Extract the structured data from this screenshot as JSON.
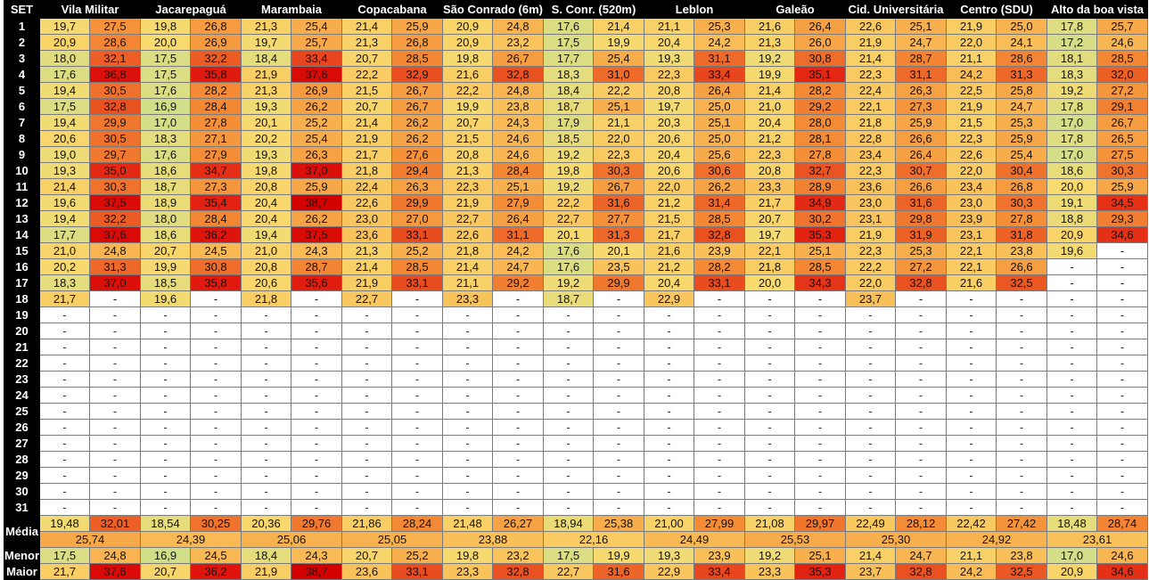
{
  "corner_label": "SET",
  "stations": [
    "Vila Militar",
    "Jacarepaguá",
    "Marambaia",
    "Copacabana",
    "São Conrado (6m)",
    "S. Conr. (520m)",
    "Leblon",
    "Galeão",
    "Cid. Universitária",
    "Centro (SDU)",
    "Alto da boa vista"
  ],
  "day_labels": [
    "1",
    "2",
    "3",
    "4",
    "5",
    "6",
    "7",
    "8",
    "9",
    "10",
    "11",
    "12",
    "13",
    "14",
    "15",
    "16",
    "17",
    "18",
    "19",
    "20",
    "21",
    "22",
    "23",
    "24",
    "25",
    "26",
    "27",
    "28",
    "29",
    "30",
    "31"
  ],
  "empty_symbol": "-",
  "rows": [
    [
      "19,7",
      "27,5",
      "19,8",
      "26,8",
      "21,3",
      "25,4",
      "21,4",
      "25,9",
      "20,9",
      "24,8",
      "17,6",
      "21,4",
      "21,1",
      "25,3",
      "21,6",
      "26,4",
      "22,6",
      "25,1",
      "21,9",
      "25,0",
      "17,8",
      "25,7"
    ],
    [
      "20,9",
      "28,6",
      "20,0",
      "26,9",
      "19,7",
      "25,7",
      "21,3",
      "26,8",
      "20,9",
      "23,2",
      "17,5",
      "19,9",
      "20,4",
      "24,2",
      "21,3",
      "26,0",
      "21,9",
      "24,7",
      "22,0",
      "24,1",
      "17,2",
      "24,6"
    ],
    [
      "18,0",
      "32,1",
      "17,5",
      "32,2",
      "18,4",
      "33,4",
      "20,7",
      "28,5",
      "19,8",
      "26,7",
      "17,7",
      "25,4",
      "19,3",
      "31,1",
      "19,2",
      "30,8",
      "21,4",
      "28,7",
      "21,1",
      "28,6",
      "18,1",
      "28,5"
    ],
    [
      "17,6",
      "36,8",
      "17,5",
      "35,8",
      "21,9",
      "37,6",
      "22,2",
      "32,9",
      "21,6",
      "32,8",
      "18,3",
      "31,0",
      "22,3",
      "33,4",
      "19,9",
      "35,1",
      "22,3",
      "31,1",
      "24,2",
      "31,3",
      "18,3",
      "32,0"
    ],
    [
      "19,4",
      "30,5",
      "17,6",
      "28,2",
      "21,3",
      "26,9",
      "21,5",
      "26,7",
      "22,2",
      "24,8",
      "18,4",
      "22,2",
      "20,8",
      "26,4",
      "21,4",
      "28,2",
      "22,4",
      "26,3",
      "22,5",
      "25,8",
      "19,2",
      "27,2"
    ],
    [
      "17,5",
      "32,8",
      "16,9",
      "28,4",
      "19,3",
      "26,2",
      "20,7",
      "26,7",
      "19,9",
      "23,8",
      "18,7",
      "25,1",
      "19,7",
      "25,0",
      "21,0",
      "29,2",
      "22,1",
      "27,3",
      "21,9",
      "24,7",
      "17,8",
      "29,1"
    ],
    [
      "19,4",
      "29,9",
      "17,0",
      "27,8",
      "20,1",
      "25,2",
      "21,4",
      "26,2",
      "20,7",
      "24,3",
      "17,9",
      "21,1",
      "20,3",
      "25,1",
      "20,4",
      "28,0",
      "21,8",
      "25,9",
      "21,5",
      "25,3",
      "17,0",
      "26,7"
    ],
    [
      "20,6",
      "30,5",
      "18,3",
      "27,1",
      "20,2",
      "25,4",
      "21,9",
      "26,2",
      "21,5",
      "24,6",
      "18,5",
      "22,0",
      "20,6",
      "25,0",
      "21,2",
      "28,1",
      "22,8",
      "26,6",
      "22,3",
      "25,9",
      "17,8",
      "26,5"
    ],
    [
      "19,0",
      "29,7",
      "17,6",
      "27,9",
      "19,3",
      "26,3",
      "21,7",
      "27,6",
      "20,8",
      "24,6",
      "19,2",
      "22,3",
      "20,4",
      "25,6",
      "22,3",
      "27,8",
      "23,4",
      "26,4",
      "22,6",
      "25,4",
      "17,0",
      "27,5"
    ],
    [
      "19,3",
      "35,0",
      "18,6",
      "34,7",
      "19,8",
      "37,0",
      "21,8",
      "29,4",
      "21,3",
      "28,4",
      "19,8",
      "30,3",
      "20,6",
      "30,6",
      "20,8",
      "32,7",
      "22,3",
      "30,7",
      "22,0",
      "30,4",
      "18,6",
      "30,3"
    ],
    [
      "21,4",
      "30,3",
      "18,7",
      "27,3",
      "20,8",
      "25,9",
      "22,4",
      "26,3",
      "22,3",
      "25,1",
      "19,2",
      "26,7",
      "22,0",
      "26,2",
      "23,3",
      "28,9",
      "23,6",
      "26,6",
      "23,4",
      "26,8",
      "20,0",
      "25,9"
    ],
    [
      "19,6",
      "37,5",
      "18,9",
      "35,4",
      "20,4",
      "38,7",
      "22,6",
      "29,9",
      "21,9",
      "27,9",
      "22,2",
      "31,6",
      "21,2",
      "31,4",
      "21,7",
      "34,9",
      "23,0",
      "31,6",
      "23,0",
      "30,3",
      "19,1",
      "34,5"
    ],
    [
      "19,4",
      "32,2",
      "18,0",
      "28,4",
      "20,4",
      "26,2",
      "23,0",
      "27,0",
      "22,7",
      "26,4",
      "22,7",
      "27,7",
      "21,5",
      "28,5",
      "20,7",
      "30,2",
      "23,1",
      "29,8",
      "23,9",
      "27,8",
      "18,8",
      "29,3"
    ],
    [
      "17,7",
      "37,6",
      "18,6",
      "36,2",
      "19,4",
      "37,5",
      "23,6",
      "33,1",
      "22,6",
      "31,1",
      "20,1",
      "31,3",
      "21,7",
      "32,8",
      "19,7",
      "35,3",
      "21,9",
      "31,9",
      "23,1",
      "31,8",
      "20,9",
      "34,6"
    ],
    [
      "21,0",
      "24,8",
      "20,7",
      "24,5",
      "21,0",
      "24,3",
      "21,3",
      "25,2",
      "21,8",
      "24,2",
      "17,6",
      "20,1",
      "21,6",
      "23,9",
      "22,1",
      "25,1",
      "22,3",
      "25,3",
      "22,1",
      "23,8",
      "19,6",
      "-"
    ],
    [
      "20,2",
      "31,3",
      "19,9",
      "30,8",
      "20,8",
      "28,7",
      "21,4",
      "28,5",
      "21,4",
      "24,7",
      "17,6",
      "23,5",
      "21,2",
      "28,2",
      "21,8",
      "28,5",
      "22,2",
      "27,2",
      "22,1",
      "26,6",
      "-",
      "-"
    ],
    [
      "18,3",
      "37,0",
      "18,5",
      "35,8",
      "20,6",
      "35,6",
      "21,9",
      "33,1",
      "21,1",
      "29,2",
      "19,2",
      "29,9",
      "20,4",
      "33,1",
      "20,0",
      "34,3",
      "22,0",
      "32,8",
      "21,6",
      "32,5",
      "-",
      "-"
    ],
    [
      "21,7",
      "-",
      "19,6",
      "-",
      "21,8",
      "-",
      "22,7",
      "-",
      "23,3",
      "-",
      "18,7",
      "-",
      "22,9",
      "-",
      "-",
      "-",
      "23,7",
      "-",
      "-",
      "-",
      "-",
      "-"
    ]
  ],
  "summary": {
    "media_label": "Média",
    "media_pairs": [
      "19,48",
      "32,01",
      "18,54",
      "30,25",
      "20,36",
      "29,76",
      "21,86",
      "28,24",
      "21,48",
      "26,27",
      "18,94",
      "25,38",
      "21,00",
      "27,99",
      "21,08",
      "29,97",
      "22,49",
      "28,12",
      "22,42",
      "27,42",
      "18,48",
      "28,74"
    ],
    "media_avg": [
      "25,74",
      "24,39",
      "25,06",
      "25,05",
      "23,88",
      "22,16",
      "24,49",
      "25,53",
      "25,30",
      "24,92",
      "23,61"
    ],
    "menor_label": "Menor",
    "menor": [
      "17,5",
      "24,8",
      "16,9",
      "24,5",
      "18,4",
      "24,3",
      "20,7",
      "25,2",
      "19,8",
      "23,2",
      "17,5",
      "19,9",
      "19,3",
      "23,9",
      "19,2",
      "25,1",
      "21,4",
      "24,7",
      "21,1",
      "23,8",
      "17,0",
      "24,6"
    ],
    "maior_label": "Maior",
    "maior": [
      "21,7",
      "37,6",
      "20,7",
      "36,2",
      "21,9",
      "38,7",
      "23,6",
      "33,1",
      "23,3",
      "32,8",
      "22,7",
      "31,6",
      "22,9",
      "33,4",
      "23,3",
      "35,3",
      "23,7",
      "32,8",
      "24,2",
      "32,5",
      "20,9",
      "34,6"
    ]
  }
}
